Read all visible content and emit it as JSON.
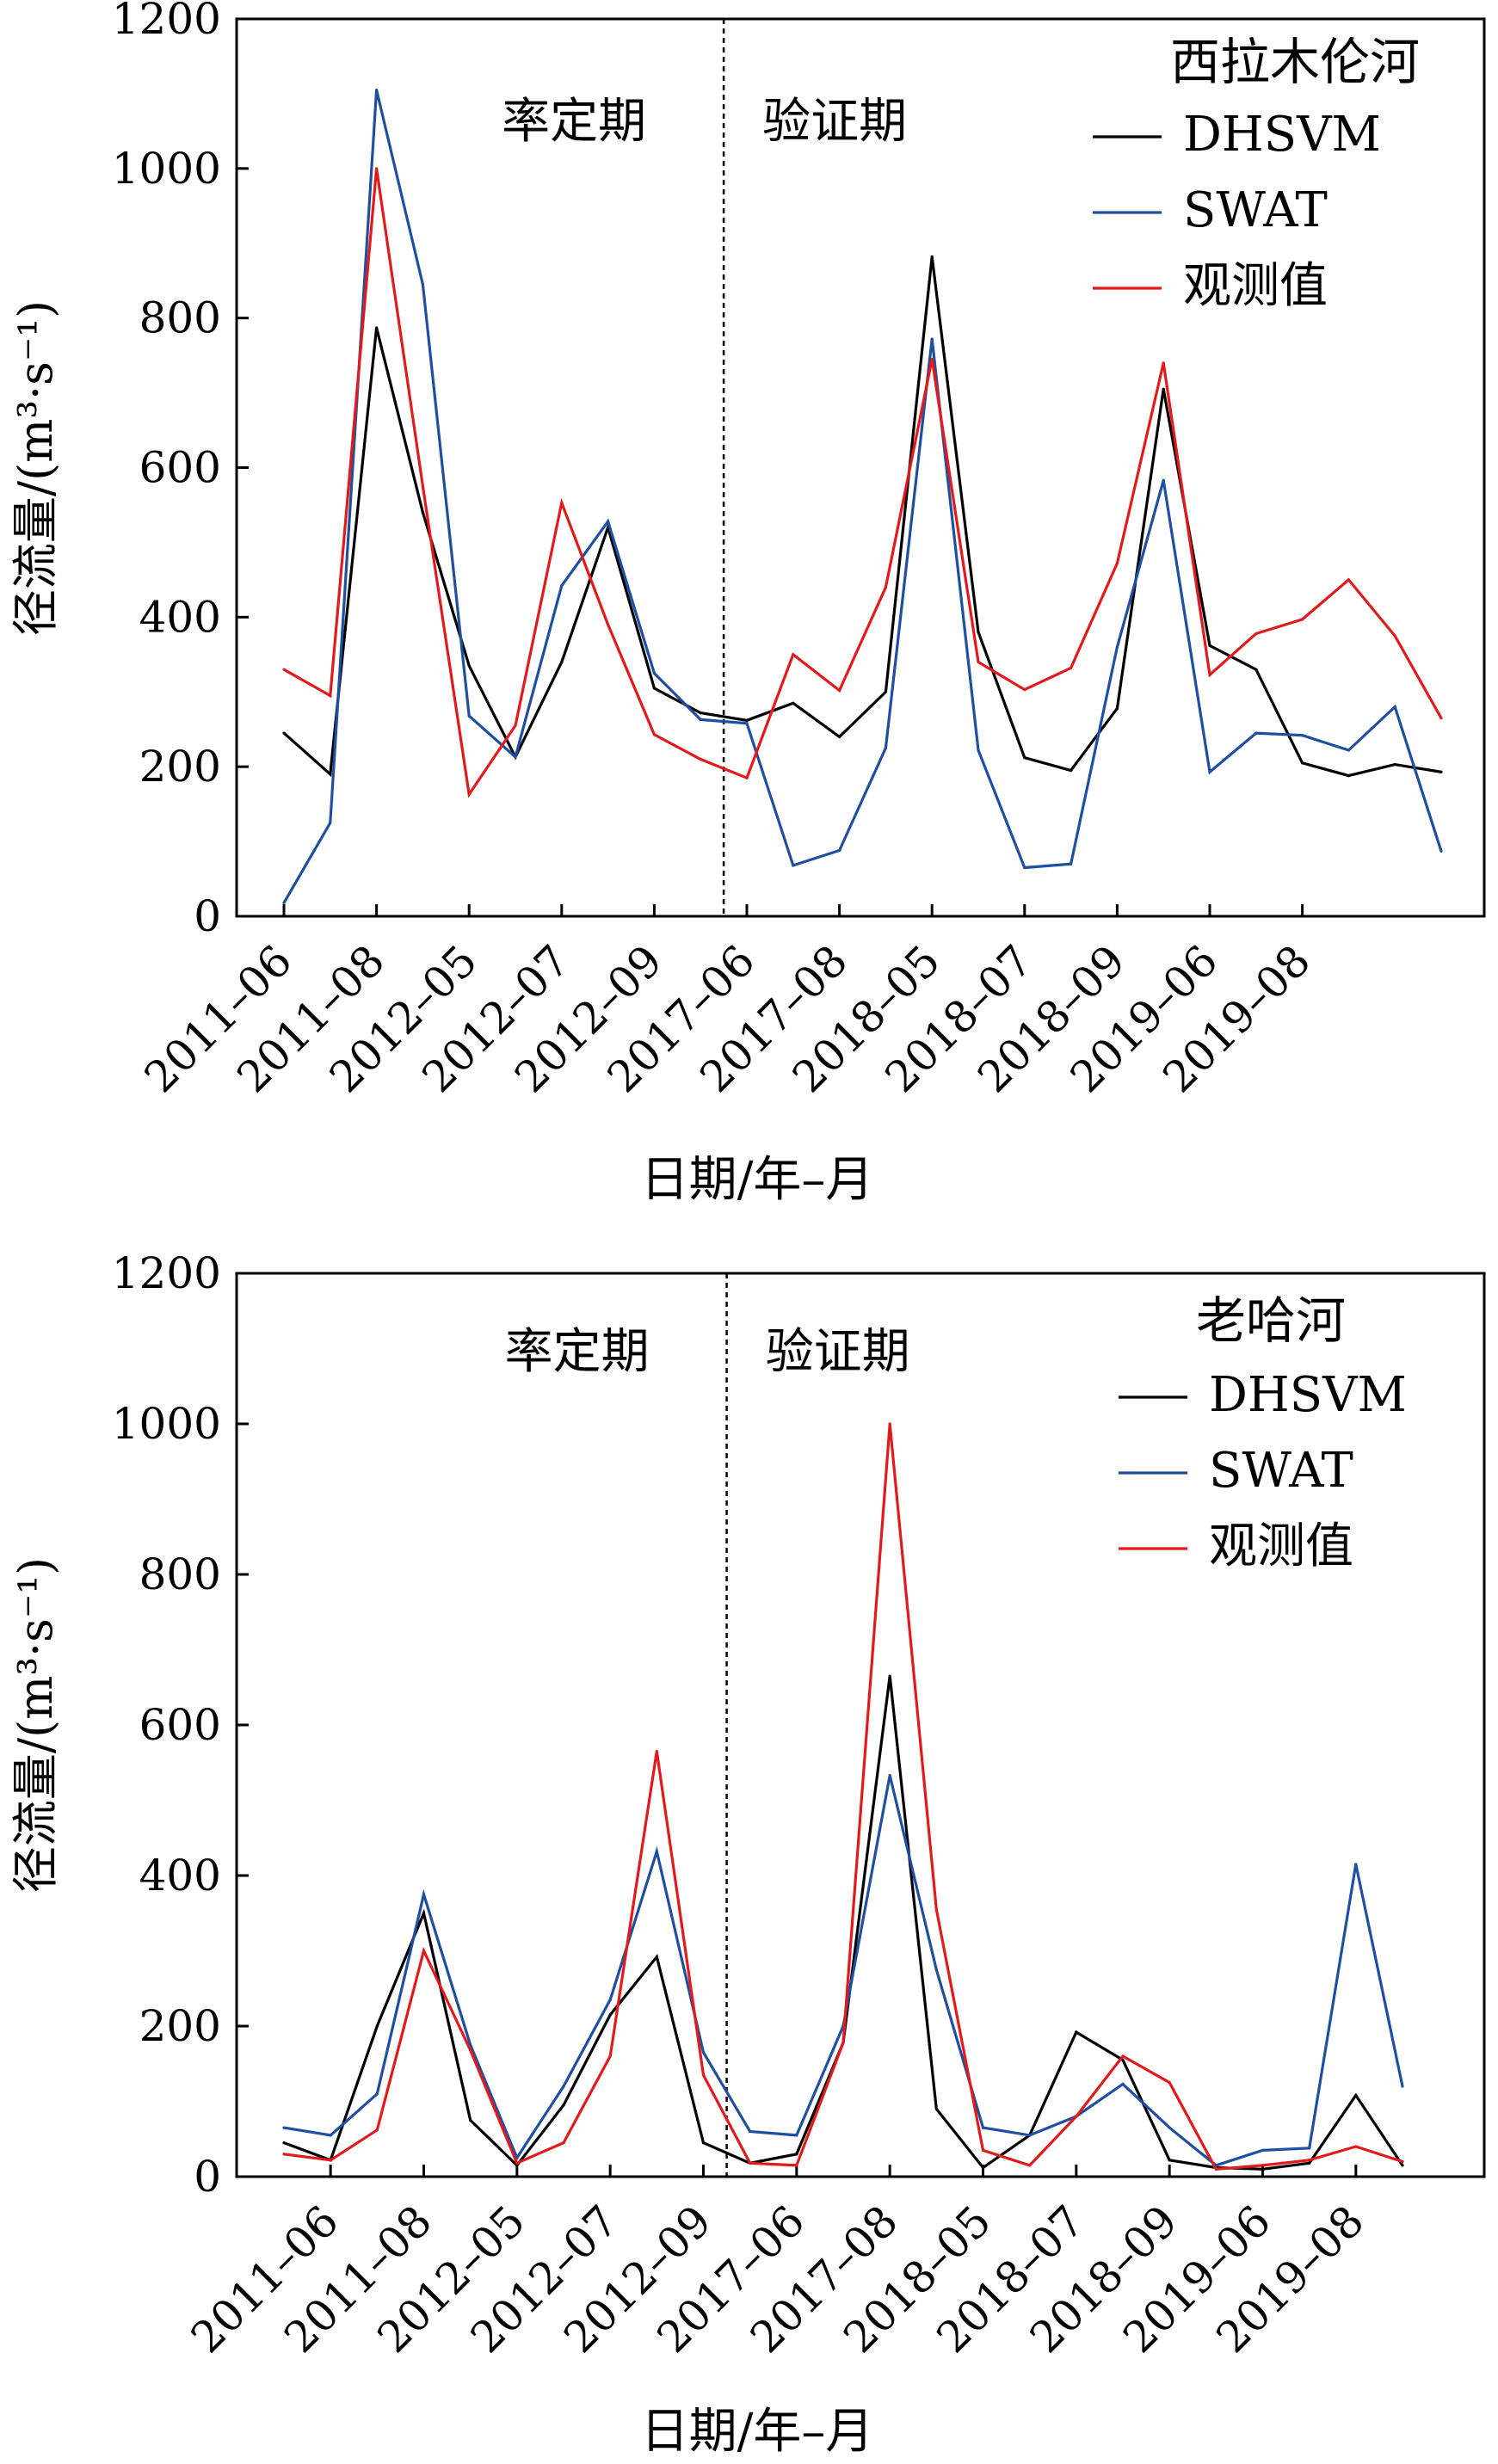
{
  "chart_data": [
    {
      "type": "line",
      "title": "西拉木伦河",
      "xlabel": "日期/年–月",
      "ylabel": "径流量/(m³·s⁻¹)",
      "ylim": [
        0,
        1200
      ],
      "yticks": [
        "0",
        "200",
        "400",
        "600",
        "800",
        "1000",
        "1200"
      ],
      "xtick_labels": [
        "2011–06",
        "2011–08",
        "2012–05",
        "2012–07",
        "2012–09",
        "2017–06",
        "2017–08",
        "2018–05",
        "2018–07",
        "2018–09",
        "2019–06",
        "2019–08"
      ],
      "period_labels": {
        "calibration": "率定期",
        "validation": "验证期"
      },
      "split_after_index": 9,
      "legend_position": "top-right",
      "grid": false,
      "series": [
        {
          "name": "DHSVM",
          "color": "#000000",
          "values": [
            245,
            190,
            787,
            540,
            335,
            213,
            340,
            520,
            305,
            272,
            262,
            285,
            240,
            300,
            882,
            380,
            212,
            195,
            278,
            705,
            362,
            330,
            205,
            188,
            203,
            193
          ]
        },
        {
          "name": "SWAT",
          "color": "#1f4fa0",
          "values": [
            18,
            125,
            1105,
            845,
            268,
            213,
            442,
            528,
            325,
            263,
            258,
            68,
            88,
            225,
            772,
            222,
            65,
            70,
            360,
            583,
            193,
            245,
            242,
            222,
            280,
            87
          ]
        },
        {
          "name": "观测值",
          "color": "#e31a1c",
          "values": [
            330,
            295,
            1000,
            575,
            163,
            255,
            553,
            390,
            243,
            210,
            185,
            350,
            302,
            440,
            745,
            340,
            303,
            332,
            472,
            740,
            323,
            378,
            397,
            450,
            375,
            265
          ]
        }
      ]
    },
    {
      "type": "line",
      "title": "老哈河",
      "xlabel": "日期/年–月",
      "ylabel": "径流量/(m³·s⁻¹)",
      "ylim": [
        0,
        1200
      ],
      "yticks": [
        "0",
        "200",
        "400",
        "600",
        "800",
        "1000",
        "1200"
      ],
      "xtick_labels": [
        "2011–06",
        "2011–08",
        "2012–05",
        "2012–07",
        "2012–09",
        "2017–06",
        "2017–08",
        "2018–05",
        "2018–07",
        "2018–09",
        "2019–06",
        "2019–08"
      ],
      "period_labels": {
        "calibration": "率定期",
        "validation": "验证期"
      },
      "split_after_index": 9,
      "legend_position": "top-right",
      "grid": false,
      "series": [
        {
          "name": "DHSVM",
          "color": "#000000",
          "values": [
            45,
            22,
            200,
            350,
            75,
            15,
            95,
            215,
            292,
            45,
            18,
            30,
            178,
            665,
            90,
            12,
            55,
            192,
            155,
            22,
            12,
            10,
            18,
            108,
            15
          ]
        },
        {
          "name": "SWAT",
          "color": "#1f4fa0",
          "values": [
            65,
            55,
            110,
            375,
            175,
            25,
            120,
            235,
            432,
            165,
            60,
            55,
            200,
            533,
            275,
            65,
            55,
            80,
            123,
            65,
            15,
            35,
            38,
            415,
            120
          ]
        },
        {
          "name": "观测值",
          "color": "#e31a1c",
          "values": [
            30,
            22,
            62,
            300,
            168,
            18,
            45,
            160,
            565,
            135,
            18,
            15,
            178,
            1000,
            355,
            35,
            15,
            80,
            160,
            125,
            10,
            15,
            22,
            40,
            20
          ]
        }
      ]
    }
  ]
}
